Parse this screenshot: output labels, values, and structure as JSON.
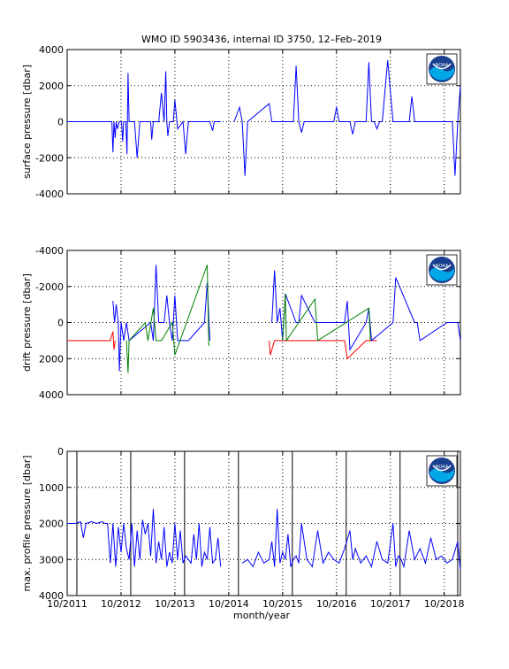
{
  "title": "WMO ID 5903436, internal ID 3750, 12–Feb–2019",
  "xlabel": "month/year",
  "x_tick_labels": [
    "10/2011",
    "10/2012",
    "10/2013",
    "10/2014",
    "10/2015",
    "10/2016",
    "10/2017",
    "10/2018"
  ],
  "colors": {
    "primary": "#0000ff",
    "secondary": "#008000",
    "tertiary": "#ff0000",
    "vline": "#000000",
    "grid": "#000000"
  },
  "logo_text": "NOAA",
  "chart_data": [
    {
      "type": "line",
      "ylabel": "surface pressure [dbar]",
      "ylim": [
        -4000,
        4000
      ],
      "yreversed": false,
      "yticks": [
        -4000,
        -2000,
        0,
        2000,
        4000
      ],
      "grid": true,
      "xlim": [
        2011.75,
        2019.05
      ],
      "series": [
        {
          "color": "#0000ff",
          "x": [
            2011.75,
            2012.5,
            2012.55,
            2012.58,
            2012.6,
            2012.62,
            2012.64,
            2012.66,
            2012.68,
            2012.72,
            2012.76,
            2012.78,
            2012.8,
            2012.84,
            2012.86,
            2012.88,
            2012.9,
            2012.95,
            2013.0,
            2013.05,
            2013.1,
            2013.15,
            2013.25,
            2013.3,
            2013.32,
            2013.35,
            2013.4,
            2013.45,
            2013.5,
            2013.55,
            2013.58,
            2013.6,
            2013.62,
            2013.65,
            2013.7,
            2013.72,
            2013.75,
            2013.8,
            2013.9,
            2013.95,
            2014.0,
            2014.1,
            2014.2,
            2014.35,
            2014.4,
            2014.45,
            2014.48,
            2014.5,
            2014.6
          ],
          "y": [
            0,
            0,
            0,
            0,
            -1700,
            0,
            -900,
            0,
            -400,
            0,
            0,
            -1100,
            0,
            0,
            -1800,
            2700,
            0,
            0,
            0,
            -2000,
            0,
            0,
            0,
            0,
            -1000,
            0,
            0,
            0,
            1600,
            0,
            2800,
            0,
            -800,
            0,
            0,
            0,
            1200,
            -400,
            0,
            -1800,
            0,
            0,
            0,
            0,
            0,
            -500,
            0,
            0,
            0
          ]
        },
        {
          "color": "#0000ff",
          "x": [
            2014.85,
            2014.95,
            2015.0,
            2015.05,
            2015.1,
            2015.5,
            2015.55,
            2015.6,
            2015.95,
            2016.0,
            2016.05,
            2016.1,
            2016.15,
            2016.3,
            2016.5,
            2016.7,
            2016.75,
            2016.8,
            2016.95,
            2017.0,
            2017.05,
            2017.1,
            2017.2,
            2017.3,
            2017.35,
            2017.4,
            2017.45,
            2017.5,
            2017.55,
            2017.6,
            2017.7,
            2017.8,
            2018.0,
            2018.1,
            2018.15,
            2018.2,
            2018.3,
            2018.4,
            2018.6,
            2018.7,
            2018.8,
            2018.9,
            2018.95,
            2019.0,
            2019.05
          ],
          "y": [
            0,
            800,
            0,
            -3000,
            0,
            1000,
            0,
            0,
            0,
            3100,
            0,
            -600,
            0,
            0,
            0,
            0,
            800,
            0,
            0,
            0,
            -700,
            0,
            0,
            0,
            3300,
            0,
            0,
            -400,
            0,
            0,
            3400,
            0,
            0,
            0,
            1400,
            0,
            0,
            0,
            0,
            0,
            0,
            0,
            -3000,
            0,
            2000
          ]
        }
      ]
    },
    {
      "type": "line",
      "ylabel": "drift pressure [dbar]",
      "ylim": [
        -4000,
        4000
      ],
      "yreversed": true,
      "yticks": [
        -4000,
        -2000,
        0,
        2000,
        4000
      ],
      "grid": true,
      "xlim": [
        2011.75,
        2019.05
      ],
      "series": [
        {
          "color": "#ff0000",
          "x": [
            2011.75,
            2011.85,
            2012.0,
            2012.2,
            2012.4,
            2012.5,
            2012.55,
            2012.6,
            2012.62,
            2012.64
          ],
          "y": [
            1000,
            1000,
            1000,
            1000,
            1000,
            1000,
            1000,
            500,
            1500,
            1000
          ]
        },
        {
          "color": "#0000ff",
          "x": [
            2012.6,
            2012.63,
            2012.66,
            2012.7,
            2012.72,
            2012.75,
            2012.8,
            2012.85,
            2012.9,
            2013.3,
            2013.35,
            2013.4,
            2013.45,
            2013.55,
            2013.6,
            2013.65,
            2013.7,
            2013.75,
            2013.8,
            2014.0,
            2014.3,
            2014.35,
            2014.4
          ],
          "y": [
            -1200,
            0,
            -1000,
            0,
            2700,
            0,
            1000,
            0,
            1000,
            0,
            1000,
            -3200,
            0,
            0,
            -1500,
            0,
            1000,
            -1500,
            1000,
            1000,
            0,
            -2200,
            1000
          ]
        },
        {
          "color": "#008000",
          "x": [
            2012.85,
            2012.88,
            2012.9,
            2013.2,
            2013.25,
            2013.35,
            2013.4,
            2013.5,
            2013.7,
            2013.75,
            2014.35,
            2014.38
          ],
          "y": [
            1000,
            2800,
            1000,
            0,
            1000,
            -800,
            1000,
            1000,
            0,
            1800,
            -3200,
            1300
          ]
        },
        {
          "color": "#ff0000",
          "x": [
            2015.5,
            2015.52,
            2015.6,
            2015.75,
            2016.0,
            2016.9,
            2016.95,
            2017.3,
            2017.5
          ],
          "y": [
            1000,
            1800,
            1000,
            1000,
            1000,
            1000,
            2000,
            1000,
            1000
          ]
        },
        {
          "color": "#0000ff",
          "x": [
            2015.55,
            2015.6,
            2015.65,
            2015.7,
            2015.75,
            2015.8,
            2016.0,
            2016.05,
            2016.1,
            2016.35,
            2016.4,
            2016.9,
            2016.95,
            2017.0,
            2017.3,
            2017.35,
            2017.4,
            2017.8,
            2017.85,
            2018.2,
            2018.25,
            2018.3,
            2018.8,
            2018.85,
            2019.0,
            2019.05
          ],
          "y": [
            0,
            -2900,
            0,
            -800,
            1000,
            -1600,
            0,
            0,
            -1500,
            0,
            0,
            0,
            -1200,
            1500,
            0,
            -800,
            1000,
            0,
            -2500,
            0,
            0,
            1000,
            0,
            0,
            0,
            1000
          ]
        },
        {
          "color": "#008000",
          "x": [
            2015.75,
            2015.8,
            2015.82,
            2016.35,
            2016.4,
            2017.35,
            2017.38
          ],
          "y": [
            1000,
            -1600,
            1000,
            -1300,
            1000,
            -800,
            1000
          ]
        }
      ]
    },
    {
      "type": "line",
      "ylabel": "max. profile pressure [dbar]",
      "ylim": [
        0,
        4000
      ],
      "yreversed": true,
      "yticks": [
        0,
        1000,
        2000,
        3000,
        4000
      ],
      "grid": true,
      "xlim": [
        2011.75,
        2019.05
      ],
      "vlines": [
        2011.93,
        2012.93,
        2013.93,
        2014.93,
        2015.93,
        2016.93,
        2017.93,
        2019.0
      ],
      "series": [
        {
          "color": "#0000ff",
          "x": [
            2011.75,
            2011.9,
            2012.0,
            2012.05,
            2012.1,
            2012.2,
            2012.3,
            2012.4,
            2012.45,
            2012.5,
            2012.55,
            2012.6,
            2012.65,
            2012.7,
            2012.75,
            2012.8,
            2012.85,
            2012.9,
            2012.95,
            2013.0,
            2013.05,
            2013.1,
            2013.15,
            2013.2,
            2013.25,
            2013.3,
            2013.35,
            2013.4,
            2013.45,
            2013.5,
            2013.55,
            2013.6,
            2013.65,
            2013.7,
            2013.75,
            2013.8,
            2013.85,
            2013.9,
            2013.95,
            2014.0,
            2014.05,
            2014.1,
            2014.15,
            2014.2,
            2014.25,
            2014.3,
            2014.35,
            2014.4,
            2014.45,
            2014.5,
            2014.55,
            2014.6
          ],
          "y": [
            2000,
            2000,
            1950,
            2400,
            2000,
            1950,
            2000,
            1950,
            2000,
            2000,
            3100,
            2000,
            3200,
            2100,
            2800,
            2000,
            2700,
            3000,
            2000,
            3200,
            2200,
            3000,
            1900,
            2300,
            2000,
            2900,
            1600,
            3100,
            2500,
            3000,
            2100,
            3200,
            2800,
            3100,
            2000,
            3000,
            2200,
            3100,
            2900,
            3000,
            3100,
            2300,
            3000,
            2000,
            3200,
            2800,
            3000,
            2100,
            3100,
            3000,
            2400,
            3200
          ]
        },
        {
          "color": "#0000ff",
          "x": [
            2015.0,
            2015.1,
            2015.2,
            2015.3,
            2015.4,
            2015.5,
            2015.55,
            2015.6,
            2015.65,
            2015.7,
            2015.75,
            2015.8,
            2015.85,
            2015.9,
            2015.95,
            2016.0,
            2016.05,
            2016.1,
            2016.2,
            2016.3,
            2016.4,
            2016.5,
            2016.6,
            2016.7,
            2016.8,
            2016.9,
            2017.0,
            2017.05,
            2017.1,
            2017.2,
            2017.3,
            2017.4,
            2017.5,
            2017.6,
            2017.7,
            2017.8,
            2017.85,
            2017.9,
            2017.95,
            2018.0,
            2018.1,
            2018.2,
            2018.3,
            2018.4,
            2018.5,
            2018.6,
            2018.7,
            2018.8,
            2018.9,
            2019.0,
            2019.05
          ],
          "y": [
            3100,
            3000,
            3200,
            2800,
            3100,
            3000,
            2500,
            3200,
            1600,
            3100,
            2800,
            3000,
            2300,
            3200,
            3000,
            2900,
            3100,
            2000,
            3000,
            3200,
            2200,
            3100,
            2800,
            3000,
            3100,
            2700,
            2200,
            3000,
            2700,
            3100,
            2900,
            3200,
            2500,
            3000,
            3100,
            2000,
            3200,
            2900,
            3000,
            3200,
            2200,
            3000,
            2700,
            3100,
            2400,
            3000,
            2900,
            3100,
            3000,
            2500,
            3300
          ]
        }
      ]
    }
  ]
}
